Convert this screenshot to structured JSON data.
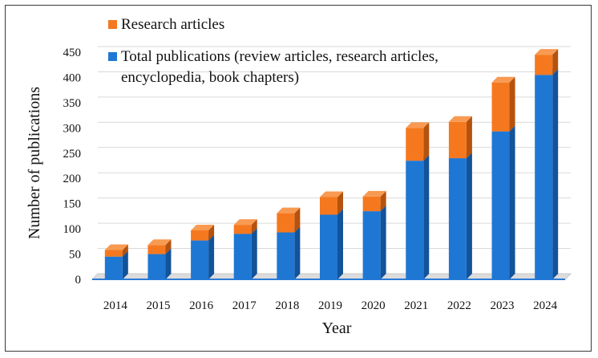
{
  "chart_data": {
    "type": "bar",
    "stacked": true,
    "three_d": true,
    "categories": [
      "2014",
      "2015",
      "2016",
      "2017",
      "2018",
      "2019",
      "2020",
      "2021",
      "2022",
      "2023",
      "2024"
    ],
    "series": [
      {
        "name": "Total publications (review articles, research articles, encyclopedia, book chapters)",
        "name_lines": [
          "Total publications (review articles, research articles,",
          "encyclopedia, book chapters)"
        ],
        "color": "#1f77d4",
        "side_color": "#12539a",
        "top_color": "#3b8fe0",
        "values": [
          45,
          50,
          77,
          90,
          93,
          128,
          135,
          235,
          240,
          293,
          405
        ]
      },
      {
        "name": "Research articles",
        "name_lines": [
          "Research articles"
        ],
        "color": "#f5781f",
        "side_color": "#b4520e",
        "top_color": "#f89a52",
        "values": [
          13,
          18,
          20,
          18,
          38,
          35,
          29,
          65,
          72,
          97,
          40
        ]
      }
    ],
    "xlabel": "Year",
    "ylabel": "Number of publications",
    "ylim": [
      0,
      450
    ],
    "yticks": [
      0,
      50,
      100,
      150,
      200,
      250,
      300,
      350,
      400,
      450
    ],
    "grid": true,
    "legend_position": "top-left inside"
  }
}
